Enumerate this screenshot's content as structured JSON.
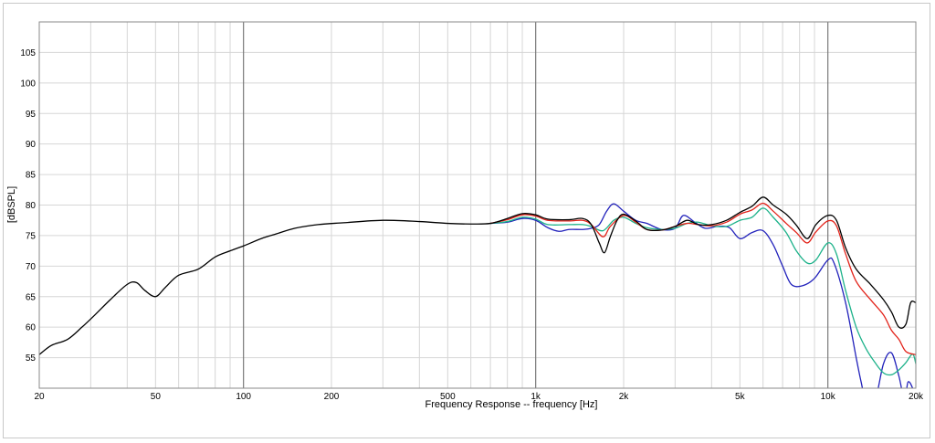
{
  "chart_data": {
    "type": "line",
    "xscale": "log",
    "xlim": [
      20,
      20000
    ],
    "ylim": [
      50,
      110
    ],
    "xlabel": "Frequency Response -- frequency [Hz]",
    "ylabel": "[dBSPL]",
    "grid": true,
    "xticks": [
      {
        "value": 20,
        "label": "20"
      },
      {
        "value": 50,
        "label": "50"
      },
      {
        "value": 100,
        "label": "100"
      },
      {
        "value": 200,
        "label": "200"
      },
      {
        "value": 500,
        "label": "500"
      },
      {
        "value": 1000,
        "label": "1k"
      },
      {
        "value": 2000,
        "label": "2k"
      },
      {
        "value": 5000,
        "label": "5k"
      },
      {
        "value": 10000,
        "label": "10k"
      },
      {
        "value": 20000,
        "label": "20k"
      }
    ],
    "yticks": [
      55,
      60,
      65,
      70,
      75,
      80,
      85,
      90,
      95,
      100,
      105
    ],
    "series": [
      {
        "color": "#000000",
        "points": [
          [
            20,
            55.5
          ],
          [
            22,
            57
          ],
          [
            25,
            58
          ],
          [
            28,
            60
          ],
          [
            31,
            62
          ],
          [
            35,
            64.5
          ],
          [
            40,
            67
          ],
          [
            43,
            67.3
          ],
          [
            46,
            66
          ],
          [
            50,
            65
          ],
          [
            54,
            66.5
          ],
          [
            60,
            68.5
          ],
          [
            70,
            69.5
          ],
          [
            80,
            71.5
          ],
          [
            90,
            72.5
          ],
          [
            100,
            73.3
          ],
          [
            115,
            74.5
          ],
          [
            130,
            75.3
          ],
          [
            150,
            76.2
          ],
          [
            180,
            76.8
          ],
          [
            220,
            77.1
          ],
          [
            300,
            77.5
          ],
          [
            400,
            77.3
          ],
          [
            500,
            77.0
          ],
          [
            600,
            76.9
          ],
          [
            700,
            77.0
          ],
          [
            800,
            77.8
          ],
          [
            900,
            78.6
          ],
          [
            1000,
            78.4
          ],
          [
            1100,
            77.7
          ],
          [
            1300,
            77.6
          ],
          [
            1450,
            77.8
          ],
          [
            1550,
            76.8
          ],
          [
            1650,
            73.8
          ],
          [
            1720,
            72.2
          ],
          [
            1800,
            74.8
          ],
          [
            1900,
            77.5
          ],
          [
            2000,
            78.5
          ],
          [
            2200,
            77.4
          ],
          [
            2400,
            76.0
          ],
          [
            2700,
            75.9
          ],
          [
            3000,
            76.5
          ],
          [
            3300,
            77.5
          ],
          [
            3600,
            76.8
          ],
          [
            4000,
            76.8
          ],
          [
            4500,
            77.5
          ],
          [
            5000,
            78.8
          ],
          [
            5500,
            79.8
          ],
          [
            6000,
            81.3
          ],
          [
            6500,
            80.0
          ],
          [
            7200,
            78.5
          ],
          [
            7800,
            76.7
          ],
          [
            8500,
            74.5
          ],
          [
            9100,
            76.8
          ],
          [
            10000,
            78.3
          ],
          [
            10700,
            77.5
          ],
          [
            11500,
            73
          ],
          [
            12500,
            69.5
          ],
          [
            14000,
            67
          ],
          [
            15500,
            64.5
          ],
          [
            16500,
            62.5
          ],
          [
            17500,
            60
          ],
          [
            18500,
            60.5
          ],
          [
            19200,
            64
          ],
          [
            20000,
            64
          ]
        ]
      },
      {
        "color": "#e2231a",
        "points": [
          [
            700,
            77.0
          ],
          [
            800,
            77.6
          ],
          [
            900,
            78.4
          ],
          [
            1000,
            78.2
          ],
          [
            1100,
            77.5
          ],
          [
            1300,
            77.4
          ],
          [
            1450,
            77.5
          ],
          [
            1550,
            76.8
          ],
          [
            1700,
            74.8
          ],
          [
            1800,
            76.5
          ],
          [
            2000,
            78.3
          ],
          [
            2200,
            77.2
          ],
          [
            2400,
            76.0
          ],
          [
            2700,
            75.9
          ],
          [
            3000,
            76.5
          ],
          [
            3300,
            77.0
          ],
          [
            3600,
            76.8
          ],
          [
            4000,
            76.6
          ],
          [
            4500,
            77.2
          ],
          [
            5000,
            78.5
          ],
          [
            5500,
            79.2
          ],
          [
            6000,
            80.3
          ],
          [
            6500,
            79.0
          ],
          [
            7200,
            77.0
          ],
          [
            7800,
            75.5
          ],
          [
            8500,
            73.8
          ],
          [
            9100,
            75.6
          ],
          [
            10000,
            77.4
          ],
          [
            10700,
            76.6
          ],
          [
            11500,
            72
          ],
          [
            12500,
            67.5
          ],
          [
            14000,
            64.5
          ],
          [
            15500,
            62
          ],
          [
            16500,
            59.5
          ],
          [
            17500,
            58
          ],
          [
            18500,
            56
          ],
          [
            20000,
            55.5
          ]
        ]
      },
      {
        "color": "#1db28a",
        "points": [
          [
            700,
            77.0
          ],
          [
            800,
            77.3
          ],
          [
            900,
            78.0
          ],
          [
            1000,
            77.7
          ],
          [
            1100,
            76.8
          ],
          [
            1300,
            76.8
          ],
          [
            1450,
            76.8
          ],
          [
            1550,
            76.5
          ],
          [
            1700,
            75.8
          ],
          [
            1850,
            77.5
          ],
          [
            2000,
            78.0
          ],
          [
            2200,
            77.0
          ],
          [
            2400,
            76.3
          ],
          [
            2700,
            76.0
          ],
          [
            3000,
            76.2
          ],
          [
            3300,
            77.0
          ],
          [
            3600,
            77.2
          ],
          [
            4000,
            76.6
          ],
          [
            4500,
            76.5
          ],
          [
            5000,
            77.5
          ],
          [
            5500,
            78.0
          ],
          [
            6000,
            79.5
          ],
          [
            6500,
            78.0
          ],
          [
            7200,
            75.5
          ],
          [
            7800,
            72.5
          ],
          [
            8500,
            70.5
          ],
          [
            9100,
            71.0
          ],
          [
            10000,
            73.8
          ],
          [
            10700,
            72.0
          ],
          [
            11500,
            66
          ],
          [
            12500,
            60
          ],
          [
            13500,
            56.5
          ],
          [
            14500,
            54.2
          ],
          [
            15500,
            52.5
          ],
          [
            16500,
            52.2
          ],
          [
            17500,
            53
          ],
          [
            18500,
            54.2
          ],
          [
            19500,
            55.6
          ],
          [
            20000,
            54
          ]
        ]
      },
      {
        "color": "#2222bb",
        "points": [
          [
            700,
            77.0
          ],
          [
            800,
            77.2
          ],
          [
            900,
            77.8
          ],
          [
            1000,
            77.5
          ],
          [
            1100,
            76.3
          ],
          [
            1200,
            75.7
          ],
          [
            1300,
            76.0
          ],
          [
            1450,
            76.0
          ],
          [
            1550,
            76.2
          ],
          [
            1650,
            76.8
          ],
          [
            1750,
            79.0
          ],
          [
            1850,
            80.2
          ],
          [
            2000,
            79.0
          ],
          [
            2200,
            77.5
          ],
          [
            2400,
            77.0
          ],
          [
            2700,
            76.0
          ],
          [
            3000,
            76.2
          ],
          [
            3200,
            78.3
          ],
          [
            3500,
            77.2
          ],
          [
            3800,
            76.2
          ],
          [
            4200,
            76.5
          ],
          [
            4600,
            76.3
          ],
          [
            5000,
            74.5
          ],
          [
            5500,
            75.5
          ],
          [
            6000,
            75.8
          ],
          [
            6500,
            73.5
          ],
          [
            7000,
            70
          ],
          [
            7500,
            67
          ],
          [
            8200,
            66.8
          ],
          [
            9000,
            68
          ],
          [
            10000,
            71.0
          ],
          [
            10500,
            70.5
          ],
          [
            11500,
            64
          ],
          [
            12500,
            55
          ],
          [
            13000,
            51
          ],
          [
            13500,
            48
          ],
          [
            14500,
            48
          ],
          [
            15500,
            54
          ],
          [
            16500,
            55.8
          ],
          [
            17500,
            52
          ],
          [
            18300,
            48
          ],
          [
            18800,
            51
          ],
          [
            19500,
            50
          ],
          [
            20000,
            48
          ]
        ]
      }
    ]
  }
}
